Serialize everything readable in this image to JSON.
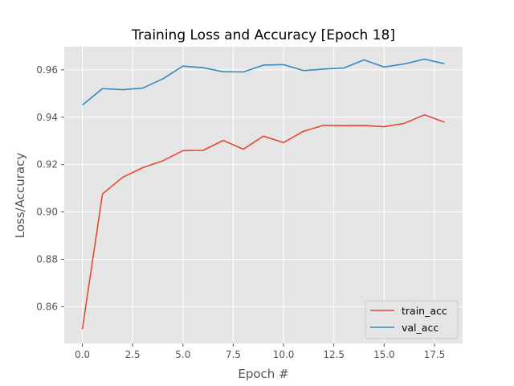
{
  "chart_data": {
    "type": "line",
    "title": "Training Loss and Accuracy [Epoch 18]",
    "xlabel": "Epoch #",
    "ylabel": "Loss/Accuracy",
    "xlim": [
      -0.9,
      18.9
    ],
    "ylim": [
      0.8445,
      0.9698
    ],
    "xticks": [
      0.0,
      2.5,
      5.0,
      7.5,
      10.0,
      12.5,
      15.0,
      17.5
    ],
    "xtick_labels": [
      "0.0",
      "2.5",
      "5.0",
      "7.5",
      "10.0",
      "12.5",
      "15.0",
      "17.5"
    ],
    "yticks": [
      0.86,
      0.88,
      0.9,
      0.92,
      0.94,
      0.96
    ],
    "ytick_labels": [
      "0.86",
      "0.88",
      "0.90",
      "0.92",
      "0.94",
      "0.96"
    ],
    "grid": true,
    "legend_position": "lower-right",
    "x": [
      0,
      1,
      2,
      3,
      4,
      5,
      6,
      7,
      8,
      9,
      10,
      11,
      12,
      13,
      14,
      15,
      16,
      17,
      18
    ],
    "series": [
      {
        "name": "train_acc",
        "color": "#e24a33",
        "values": [
          0.8505,
          0.9076,
          0.9146,
          0.9187,
          0.9216,
          0.9259,
          0.926,
          0.9302,
          0.9265,
          0.932,
          0.9293,
          0.9341,
          0.9366,
          0.9364,
          0.9365,
          0.936,
          0.9374,
          0.941,
          0.9379
        ]
      },
      {
        "name": "val_acc",
        "color": "#348abd",
        "values": [
          0.9451,
          0.9521,
          0.9516,
          0.9523,
          0.9562,
          0.9616,
          0.9609,
          0.9592,
          0.9591,
          0.962,
          0.9622,
          0.9597,
          0.9603,
          0.9608,
          0.9642,
          0.9612,
          0.9625,
          0.9645,
          0.9626
        ]
      }
    ]
  }
}
